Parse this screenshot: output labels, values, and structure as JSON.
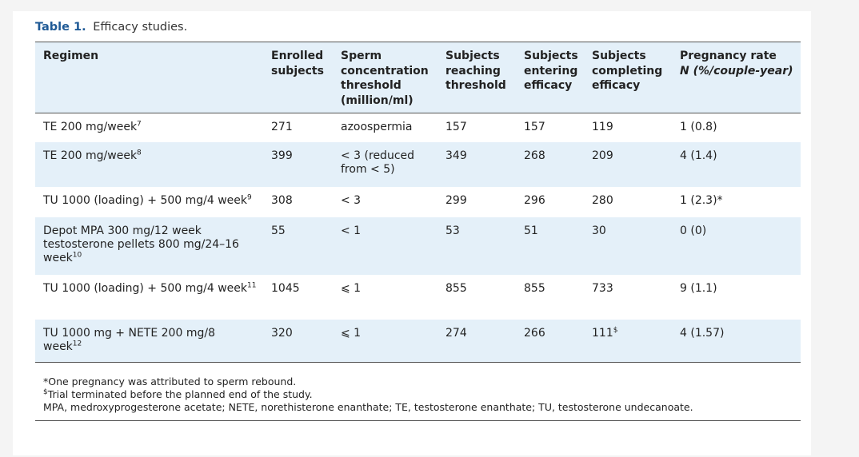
{
  "caption": {
    "label": "Table 1.",
    "text": "Efficacy studies."
  },
  "table": {
    "columns": [
      {
        "line1": "Regimen",
        "line2": "",
        "line3": "",
        "line4": ""
      },
      {
        "line1": "Enrolled",
        "line2": "subjects",
        "line3": "",
        "line4": ""
      },
      {
        "line1": "Sperm",
        "line2": "concentration",
        "line3": "threshold",
        "line4": "(million/ml)"
      },
      {
        "line1": "Subjects",
        "line2": "reaching",
        "line3": "threshold",
        "line4": ""
      },
      {
        "line1": "Subjects",
        "line2": "entering",
        "line3": "efficacy",
        "line4": ""
      },
      {
        "line1": "Subjects",
        "line2": "completing",
        "line3": "efficacy",
        "line4": ""
      },
      {
        "line1": "Pregnancy rate",
        "line2": "N (%/couple-year)",
        "line3": "",
        "line4": ""
      }
    ],
    "rows": [
      {
        "regimen": "TE 200 mg/week",
        "ref": "7",
        "enrolled": "271",
        "threshold": "azoospermia",
        "reaching": "157",
        "entering": "157",
        "completing": "119",
        "completing_sup": "",
        "pregnancy": "1 (0.8)"
      },
      {
        "regimen": "TE 200 mg/week",
        "ref": "8",
        "enrolled": "399",
        "threshold": "< 3 (reduced from < 5)",
        "reaching": "349",
        "entering": "268",
        "completing": "209",
        "completing_sup": "",
        "pregnancy": "4 (1.4)"
      },
      {
        "regimen": "TU 1000 (loading) + 500 mg/4 week",
        "ref": "9",
        "enrolled": "308",
        "threshold": "< 3",
        "reaching": "299",
        "entering": "296",
        "completing": "280",
        "completing_sup": "",
        "pregnancy": "1 (2.3)*"
      },
      {
        "regimen": "Depot MPA 300 mg/12 week testosterone pellets 800 mg/24–16 week",
        "ref": "10",
        "enrolled": "55",
        "threshold": "< 1",
        "reaching": "53",
        "entering": "51",
        "completing": "30",
        "completing_sup": "",
        "pregnancy": "0 (0)"
      },
      {
        "regimen": "TU 1000 (loading) + 500 mg/4 week",
        "ref": "11",
        "enrolled": "1045",
        "threshold": "⩽ 1",
        "reaching": "855",
        "entering": "855",
        "completing": "733",
        "completing_sup": "",
        "pregnancy": "9 (1.1)"
      },
      {
        "regimen": "TU 1000 mg + NETE 200 mg/8 week",
        "ref": "12",
        "enrolled": "320",
        "threshold": "⩽ 1",
        "reaching": "274",
        "entering": "266",
        "completing": "111",
        "completing_sup": "$",
        "pregnancy": "4 (1.57)"
      }
    ]
  },
  "notes": {
    "note1": "*One pregnancy was attributed to sperm rebound.",
    "note2_sym": "$",
    "note2": "Trial terminated before the planned end of the study.",
    "note3": "MPA, medroxyprogesterone acetate; NETE, norethisterone enanthate; TE, testosterone enanthate; TU, testosterone undecanoate."
  }
}
